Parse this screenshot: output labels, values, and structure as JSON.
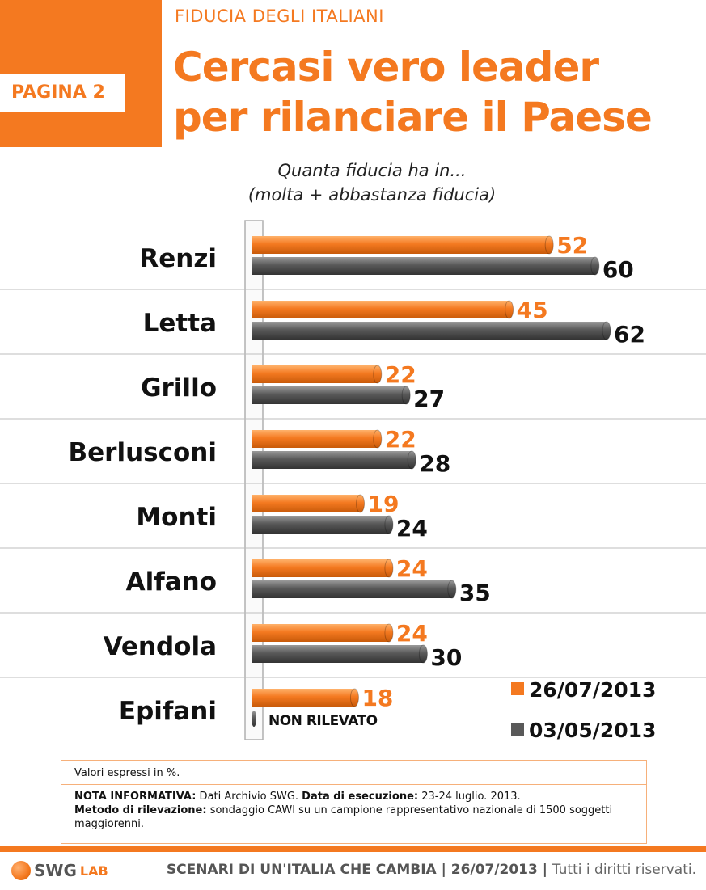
{
  "header": {
    "page_label": "PAGINA 2",
    "kicker": "FIDUCIA DEGLI ITALIANI",
    "title_line1": "Cercasi vero leader",
    "title_line2": "per rilanciare il Paese"
  },
  "subtitle": {
    "line1": "Quanta fiducia ha in...",
    "line2": "(molta + abbastanza fiducia)"
  },
  "colors": {
    "accent": "#f47920",
    "series_current": "#f47920",
    "series_previous": "#595959",
    "label_previous": "#111111"
  },
  "chart_data": {
    "type": "bar",
    "orientation": "horizontal",
    "categories": [
      "Renzi",
      "Letta",
      "Grillo",
      "Berlusconi",
      "Monti",
      "Alfano",
      "Vendola",
      "Epifani"
    ],
    "series": [
      {
        "name": "26/07/2013",
        "values": [
          52,
          45,
          22,
          22,
          19,
          24,
          24,
          18
        ]
      },
      {
        "name": "03/05/2013",
        "values": [
          60,
          62,
          27,
          28,
          24,
          35,
          30,
          null
        ]
      }
    ],
    "missing_label": "NON RILEVATO",
    "xlim": [
      0,
      62
    ],
    "legend": "bottom-right",
    "grid": false
  },
  "info": {
    "units_note": "Valori espressi in %.",
    "nota_label": "NOTA INFORMATIVA:",
    "nota_text": " Dati Archivio SWG. ",
    "data_label": "Data di esecuzione:",
    "data_text": " 23-24 luglio. 2013.",
    "metodo_label": "Metodo di rilevazione:",
    "metodo_text": " sondaggio CAWI su un campione rappresentativo nazionale di 1500 soggetti maggiorenni."
  },
  "footer": {
    "logo_text": "SWG",
    "logo_suffix": "LAB",
    "scenario": "SCENARI DI UN'ITALIA CHE CAMBIA",
    "sep1": " | ",
    "date": "26/07/2013",
    "sep2": " | ",
    "rights": "Tutti i diritti riservati."
  }
}
